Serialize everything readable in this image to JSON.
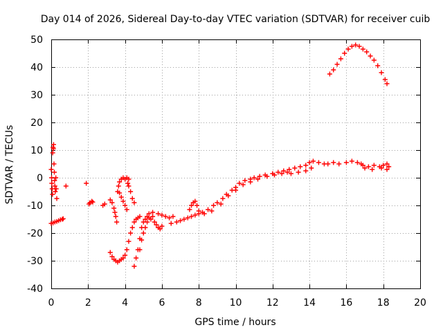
{
  "chart_data": {
    "type": "scatter",
    "title": "Day 014 of 2026, Sidereal Day-to-day VTEC variation (SDTVAR) for receiver cuib",
    "xlabel": "GPS time / hours",
    "ylabel": "SDTVAR / TECUs",
    "xlim": [
      0,
      20
    ],
    "ylim": [
      -40,
      50
    ],
    "xticks": [
      0,
      2,
      4,
      6,
      8,
      10,
      12,
      14,
      16,
      18,
      20
    ],
    "yticks": [
      -40,
      -30,
      -20,
      -10,
      0,
      10,
      20,
      30,
      40,
      50
    ],
    "grid": true,
    "marker": "+",
    "color": "#ff0000",
    "series": [
      {
        "name": "SDTVAR",
        "points": [
          [
            0.0,
            -16.5
          ],
          [
            0.1,
            -16.3
          ],
          [
            0.2,
            -16.0
          ],
          [
            0.3,
            -15.8
          ],
          [
            0.4,
            -15.5
          ],
          [
            0.5,
            -15.2
          ],
          [
            0.6,
            -15.0
          ],
          [
            0.65,
            -14.8
          ],
          [
            0.0,
            3.0
          ],
          [
            0.02,
            0.0
          ],
          [
            0.03,
            -2.0
          ],
          [
            0.05,
            -4.0
          ],
          [
            0.07,
            -6.0
          ],
          [
            0.08,
            9.0
          ],
          [
            0.1,
            11.0
          ],
          [
            0.12,
            10.5
          ],
          [
            0.13,
            12.0
          ],
          [
            0.15,
            5.0
          ],
          [
            0.17,
            2.0
          ],
          [
            0.18,
            -1.0
          ],
          [
            0.2,
            -3.0
          ],
          [
            0.22,
            -5.0
          ],
          [
            0.25,
            0.0
          ],
          [
            0.27,
            -4.0
          ],
          [
            0.3,
            -7.5
          ],
          [
            0.8,
            -3.0
          ],
          [
            1.9,
            -2.0
          ],
          [
            2.05,
            -9.5
          ],
          [
            2.1,
            -9.0
          ],
          [
            2.2,
            -8.5
          ],
          [
            2.25,
            -8.8
          ],
          [
            2.8,
            -10.0
          ],
          [
            2.9,
            -9.5
          ],
          [
            3.2,
            -8.0
          ],
          [
            3.3,
            -9.0
          ],
          [
            3.4,
            -11.0
          ],
          [
            3.45,
            -12.5
          ],
          [
            3.5,
            -14.0
          ],
          [
            3.55,
            -16.0
          ],
          [
            3.6,
            -5.0
          ],
          [
            3.65,
            -3.0
          ],
          [
            3.7,
            -1.5
          ],
          [
            3.8,
            -0.5
          ],
          [
            3.9,
            0.0
          ],
          [
            4.0,
            -0.5
          ],
          [
            4.1,
            0.0
          ],
          [
            4.2,
            -0.5
          ],
          [
            3.7,
            -5.5
          ],
          [
            3.8,
            -7.0
          ],
          [
            3.9,
            -8.5
          ],
          [
            4.0,
            -10.0
          ],
          [
            4.1,
            -11.5
          ],
          [
            4.15,
            -2.0
          ],
          [
            4.2,
            -3.0
          ],
          [
            4.3,
            -5.0
          ],
          [
            4.4,
            -7.5
          ],
          [
            4.5,
            -9.0
          ],
          [
            3.2,
            -27.0
          ],
          [
            3.3,
            -28.5
          ],
          [
            3.4,
            -29.5
          ],
          [
            3.5,
            -30.0
          ],
          [
            3.6,
            -30.5
          ],
          [
            3.7,
            -30.0
          ],
          [
            3.8,
            -29.5
          ],
          [
            3.9,
            -29.0
          ],
          [
            4.0,
            -28.0
          ],
          [
            4.1,
            -26.0
          ],
          [
            4.2,
            -23.0
          ],
          [
            4.3,
            -20.0
          ],
          [
            4.4,
            -18.0
          ],
          [
            4.5,
            -16.0
          ],
          [
            4.6,
            -15.0
          ],
          [
            4.7,
            -14.5
          ],
          [
            4.8,
            -14.0
          ],
          [
            4.5,
            -32.0
          ],
          [
            4.6,
            -29.0
          ],
          [
            4.7,
            -26.0
          ],
          [
            4.8,
            -22.0
          ],
          [
            4.9,
            -18.0
          ],
          [
            5.0,
            -16.0
          ],
          [
            5.1,
            -15.0
          ],
          [
            5.2,
            -14.0
          ],
          [
            4.8,
            -26.0
          ],
          [
            4.9,
            -22.5
          ],
          [
            5.0,
            -20.0
          ],
          [
            5.1,
            -18.0
          ],
          [
            5.2,
            -16.0
          ],
          [
            5.3,
            -14.5
          ],
          [
            5.4,
            -15.0
          ],
          [
            5.5,
            -14.0
          ],
          [
            5.6,
            -16.0
          ],
          [
            5.7,
            -17.0
          ],
          [
            5.8,
            -18.0
          ],
          [
            5.9,
            -18.5
          ],
          [
            6.0,
            -17.5
          ],
          [
            5.3,
            -13.0
          ],
          [
            5.5,
            -12.5
          ],
          [
            5.8,
            -13.0
          ],
          [
            6.0,
            -13.5
          ],
          [
            6.2,
            -14.0
          ],
          [
            6.4,
            -14.5
          ],
          [
            6.6,
            -14.0
          ],
          [
            6.5,
            -16.5
          ],
          [
            6.8,
            -16.0
          ],
          [
            7.0,
            -15.5
          ],
          [
            7.2,
            -15.0
          ],
          [
            7.4,
            -14.5
          ],
          [
            7.6,
            -14.0
          ],
          [
            7.8,
            -13.5
          ],
          [
            8.0,
            -13.0
          ],
          [
            7.5,
            -11.5
          ],
          [
            7.6,
            -10.0
          ],
          [
            7.7,
            -9.0
          ],
          [
            7.8,
            -8.5
          ],
          [
            7.9,
            -10.0
          ],
          [
            8.0,
            -12.0
          ],
          [
            8.2,
            -12.5
          ],
          [
            8.5,
            -11.5
          ],
          [
            8.8,
            -10.0
          ],
          [
            9.0,
            -9.0
          ],
          [
            9.3,
            -7.5
          ],
          [
            9.5,
            -6.0
          ],
          [
            9.8,
            -4.5
          ],
          [
            10.0,
            -3.5
          ],
          [
            8.3,
            -13.0
          ],
          [
            8.7,
            -12.0
          ],
          [
            9.2,
            -9.5
          ],
          [
            9.6,
            -6.5
          ],
          [
            10.0,
            -4.5
          ],
          [
            10.2,
            -2.0
          ],
          [
            10.5,
            -1.0
          ],
          [
            10.8,
            -0.5
          ],
          [
            11.0,
            0.0
          ],
          [
            11.3,
            0.5
          ],
          [
            11.6,
            1.0
          ],
          [
            12.0,
            1.5
          ],
          [
            12.3,
            2.0
          ],
          [
            10.4,
            -2.5
          ],
          [
            10.8,
            -1.5
          ],
          [
            11.2,
            -0.5
          ],
          [
            11.7,
            0.5
          ],
          [
            12.1,
            1.0
          ],
          [
            12.5,
            1.5
          ],
          [
            12.8,
            2.0
          ],
          [
            12.6,
            2.5
          ],
          [
            12.9,
            3.0
          ],
          [
            13.2,
            3.5
          ],
          [
            13.5,
            4.0
          ],
          [
            13.8,
            4.5
          ],
          [
            14.0,
            5.5
          ],
          [
            14.2,
            6.0
          ],
          [
            14.5,
            5.5
          ],
          [
            13.0,
            1.5
          ],
          [
            13.4,
            2.0
          ],
          [
            13.8,
            2.5
          ],
          [
            14.1,
            3.5
          ],
          [
            14.8,
            5.0
          ],
          [
            15.0,
            5.0
          ],
          [
            15.3,
            5.5
          ],
          [
            15.6,
            5.0
          ],
          [
            16.0,
            5.5
          ],
          [
            16.3,
            6.0
          ],
          [
            16.6,
            5.5
          ],
          [
            16.8,
            5.0
          ],
          [
            16.9,
            4.5
          ],
          [
            17.2,
            4.0
          ],
          [
            17.5,
            4.5
          ],
          [
            17.8,
            4.0
          ],
          [
            18.0,
            4.5
          ],
          [
            18.2,
            5.0
          ],
          [
            18.3,
            4.0
          ],
          [
            17.0,
            3.5
          ],
          [
            17.4,
            3.0
          ],
          [
            17.9,
            3.5
          ],
          [
            18.2,
            3.0
          ],
          [
            15.1,
            37.5
          ],
          [
            15.3,
            39.0
          ],
          [
            15.5,
            41.0
          ],
          [
            15.7,
            43.0
          ],
          [
            15.9,
            45.0
          ],
          [
            16.1,
            46.5
          ],
          [
            16.3,
            47.5
          ],
          [
            16.5,
            48.0
          ],
          [
            16.7,
            47.5
          ],
          [
            16.9,
            46.5
          ],
          [
            17.1,
            45.5
          ],
          [
            17.3,
            44.0
          ],
          [
            17.5,
            42.5
          ],
          [
            17.7,
            40.5
          ],
          [
            17.9,
            38.0
          ],
          [
            18.1,
            35.5
          ],
          [
            18.2,
            34.0
          ]
        ]
      }
    ]
  }
}
